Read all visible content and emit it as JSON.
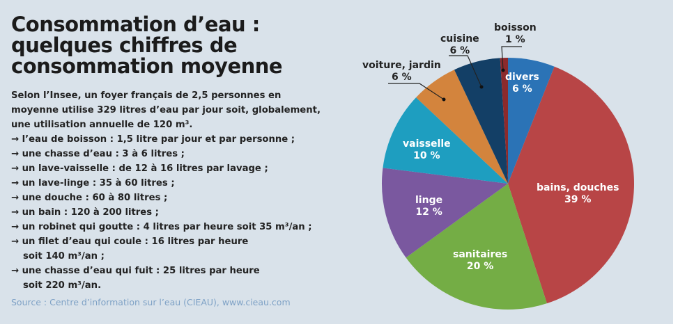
{
  "title_lines": [
    "Consommation d’eau :",
    "quelques chiffres de",
    "consommation moyenne"
  ],
  "intro_lines": [
    "Selon l’Insee, un foyer français de 2,5 personnes en",
    "moyenne utilise 329 litres d’eau par jour soit, globalement,",
    "une utilisation annuelle de 120 m³."
  ],
  "bullets": [
    [
      "→ l’eau de boisson : 1,5 litre par jour et par personne ;"
    ],
    [
      "→ une chasse d’eau : 3 à 6 litres ;"
    ],
    [
      "→ un lave-vaisselle : de 12 à 16 litres par lavage ;"
    ],
    [
      "→ un lave-linge : 35 à 60 litres ;"
    ],
    [
      "→ une douche : 60 à 80 litres ;"
    ],
    [
      "→ un bain : 120 à 200 litres ;"
    ],
    [
      "→ un robinet qui goutte : 4 litres par heure soit 35 m³/an ;"
    ],
    [
      "→ un filet d’eau qui coule : 16 litres par heure",
      "soit 140 m³/an ;"
    ],
    [
      "→ une chasse d’eau qui fuit : 25 litres par heure",
      "soit 220 m³/an."
    ]
  ],
  "source": "Source : Centre d’information sur l’eau (CIEAU), www.cieau.com",
  "chart_data": {
    "type": "pie",
    "title": "Consommation d’eau",
    "start": "top, clockwise",
    "slices": [
      {
        "label": "divers",
        "value": 6,
        "pct": "6 %",
        "color": "#2b73b6"
      },
      {
        "label": "bains, douches",
        "value": 39,
        "pct": "39 %",
        "color": "#b84546"
      },
      {
        "label": "sanitaires",
        "value": 20,
        "pct": "20 %",
        "color": "#74ad45"
      },
      {
        "label": "linge",
        "value": 12,
        "pct": "12 %",
        "color": "#7a589f"
      },
      {
        "label": "vaisselle",
        "value": 10,
        "pct": "10 %",
        "color": "#1e9ec0"
      },
      {
        "label": "voiture, jardin",
        "value": 6,
        "pct": "6 %",
        "color": "#d3843d"
      },
      {
        "label": "cuisine",
        "value": 6,
        "pct": "6 %",
        "color": "#133f66"
      },
      {
        "label": "boisson",
        "value": 1,
        "pct": "1 %",
        "color": "#8c2a2c"
      }
    ]
  }
}
